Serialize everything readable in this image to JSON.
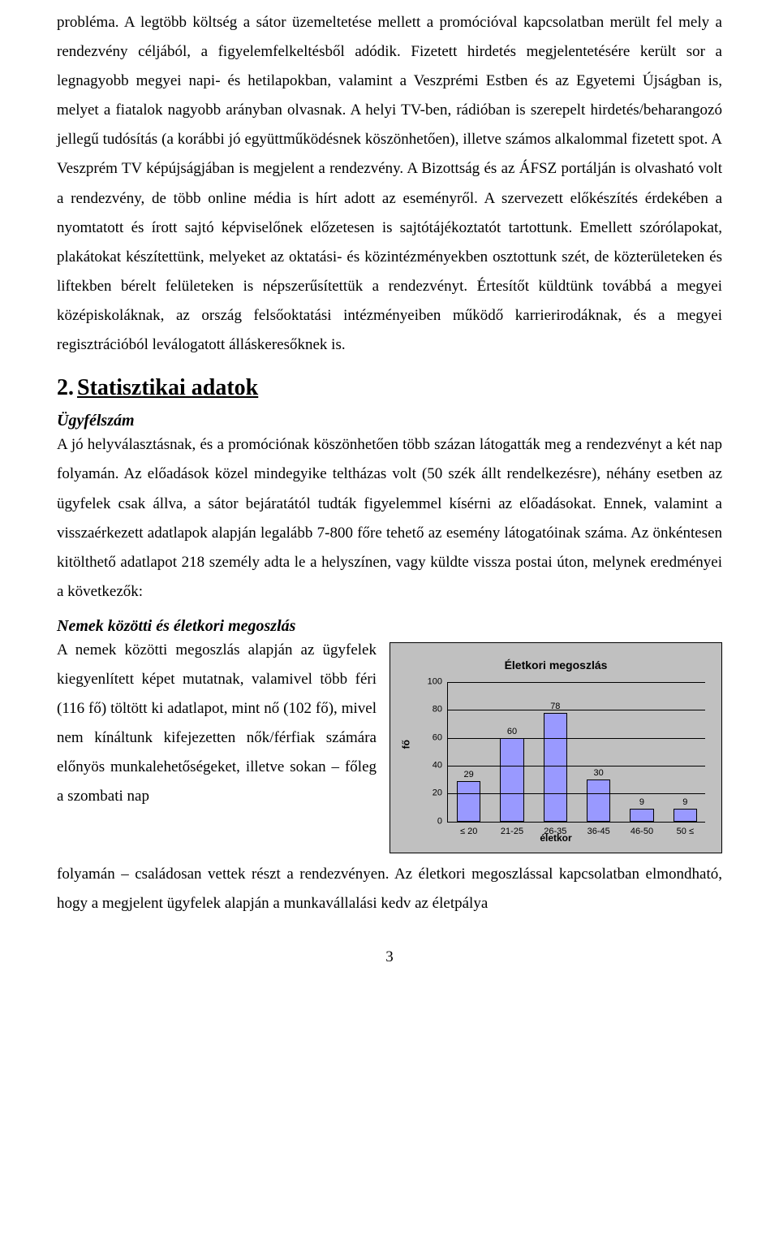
{
  "paragraph1": "probléma. A legtöbb költség a sátor üzemeltetése mellett a promócióval kapcsolatban merült fel mely a rendezvény céljából, a figyelemfelkeltésből adódik. Fizetett hirdetés megjelentetésére került sor a legnagyobb megyei napi- és hetilapokban, valamint a Veszprémi Estben és az Egyetemi Újságban is, melyet a fiatalok nagyobb arányban olvasnak. A helyi TV-ben, rádióban is szerepelt hirdetés/beharangozó jellegű tudósítás (a korábbi jó együttműködésnek köszönhetően), illetve számos alkalommal fizetett spot. A Veszprém TV képújságjában is megjelent a rendezvény. A Bizottság és az ÁFSZ portálján is olvasható volt a rendezvény, de több online média is hírt adott az eseményről. A szervezett előkészítés érdekében a nyomtatott és írott sajtó képviselőnek előzetesen is sajtótájékoztatót tartottunk. Emellett szórólapokat, plakátokat készítettünk, melyeket az oktatási- és közintézményekben osztottunk szét, de közterületeken és liftekben bérelt felületeken is népszerűsítettük a rendezvényt. Értesítőt küldtünk továbbá a megyei középiskoláknak, az ország felsőoktatási intézményeiben működő karrierirodáknak, és a megyei regisztrációból leválogatott álláskeresőknek is.",
  "sectionNumber": "2.",
  "sectionTitle": "Statisztikai adatok",
  "sub1": "Ügyfélszám",
  "paragraph2": "A jó helyválasztásnak, és a promóciónak köszönhetően több százan látogatták meg a rendezvényt a két nap folyamán. Az előadások közel mindegyike teltházas volt (50 szék állt rendelkezésre), néhány esetben az ügyfelek csak állva, a sátor bejáratától tudták figyelemmel kísérni az előadásokat. Ennek, valamint a visszaérkezett adatlapok alapján legalább 7-800 főre tehető az esemény látogatóinak száma. Az önkéntesen kitölthető adatlapot 218 személy adta le a helyszínen, vagy küldte vissza postai úton, melynek eredményei a következők:",
  "sub2": "Nemek közötti és életkori megoszlás",
  "paragraph3a": "A nemek közötti megoszlás alapján az ügyfelek kiegyenlített képet mutatnak, valamivel több féri (116 fő) töltött ki adatlapot, mint nő (102 fő), mivel nem kínáltunk kifejezetten nők/férfiak számára előnyös munkalehetőségeket, illetve sokan – főleg a szombati nap",
  "paragraph3b": "folyamán – családosan vettek részt a rendezvényen. Az életkori megoszlással kapcsolatban elmondható, hogy a megjelent ügyfelek alapján a munkavállalási kedv az életpálya",
  "pageNumber": "3",
  "chart": {
    "title": "Életkori megoszlás",
    "x_axis_title": "életkor",
    "y_axis_title": "fő",
    "categories": [
      "≤ 20",
      "21-25",
      "26-35",
      "36-45",
      "46-50",
      "50 ≤"
    ],
    "values": [
      29,
      60,
      78,
      30,
      9,
      9
    ],
    "bar_color": "#9999ff",
    "bar_border": "#000000",
    "background": "#c0c0c0",
    "y_ticks": [
      0,
      20,
      40,
      60,
      80,
      100
    ],
    "ymax": 100,
    "font_family": "Arial",
    "title_fontsize": 14,
    "label_fontsize": 11
  }
}
